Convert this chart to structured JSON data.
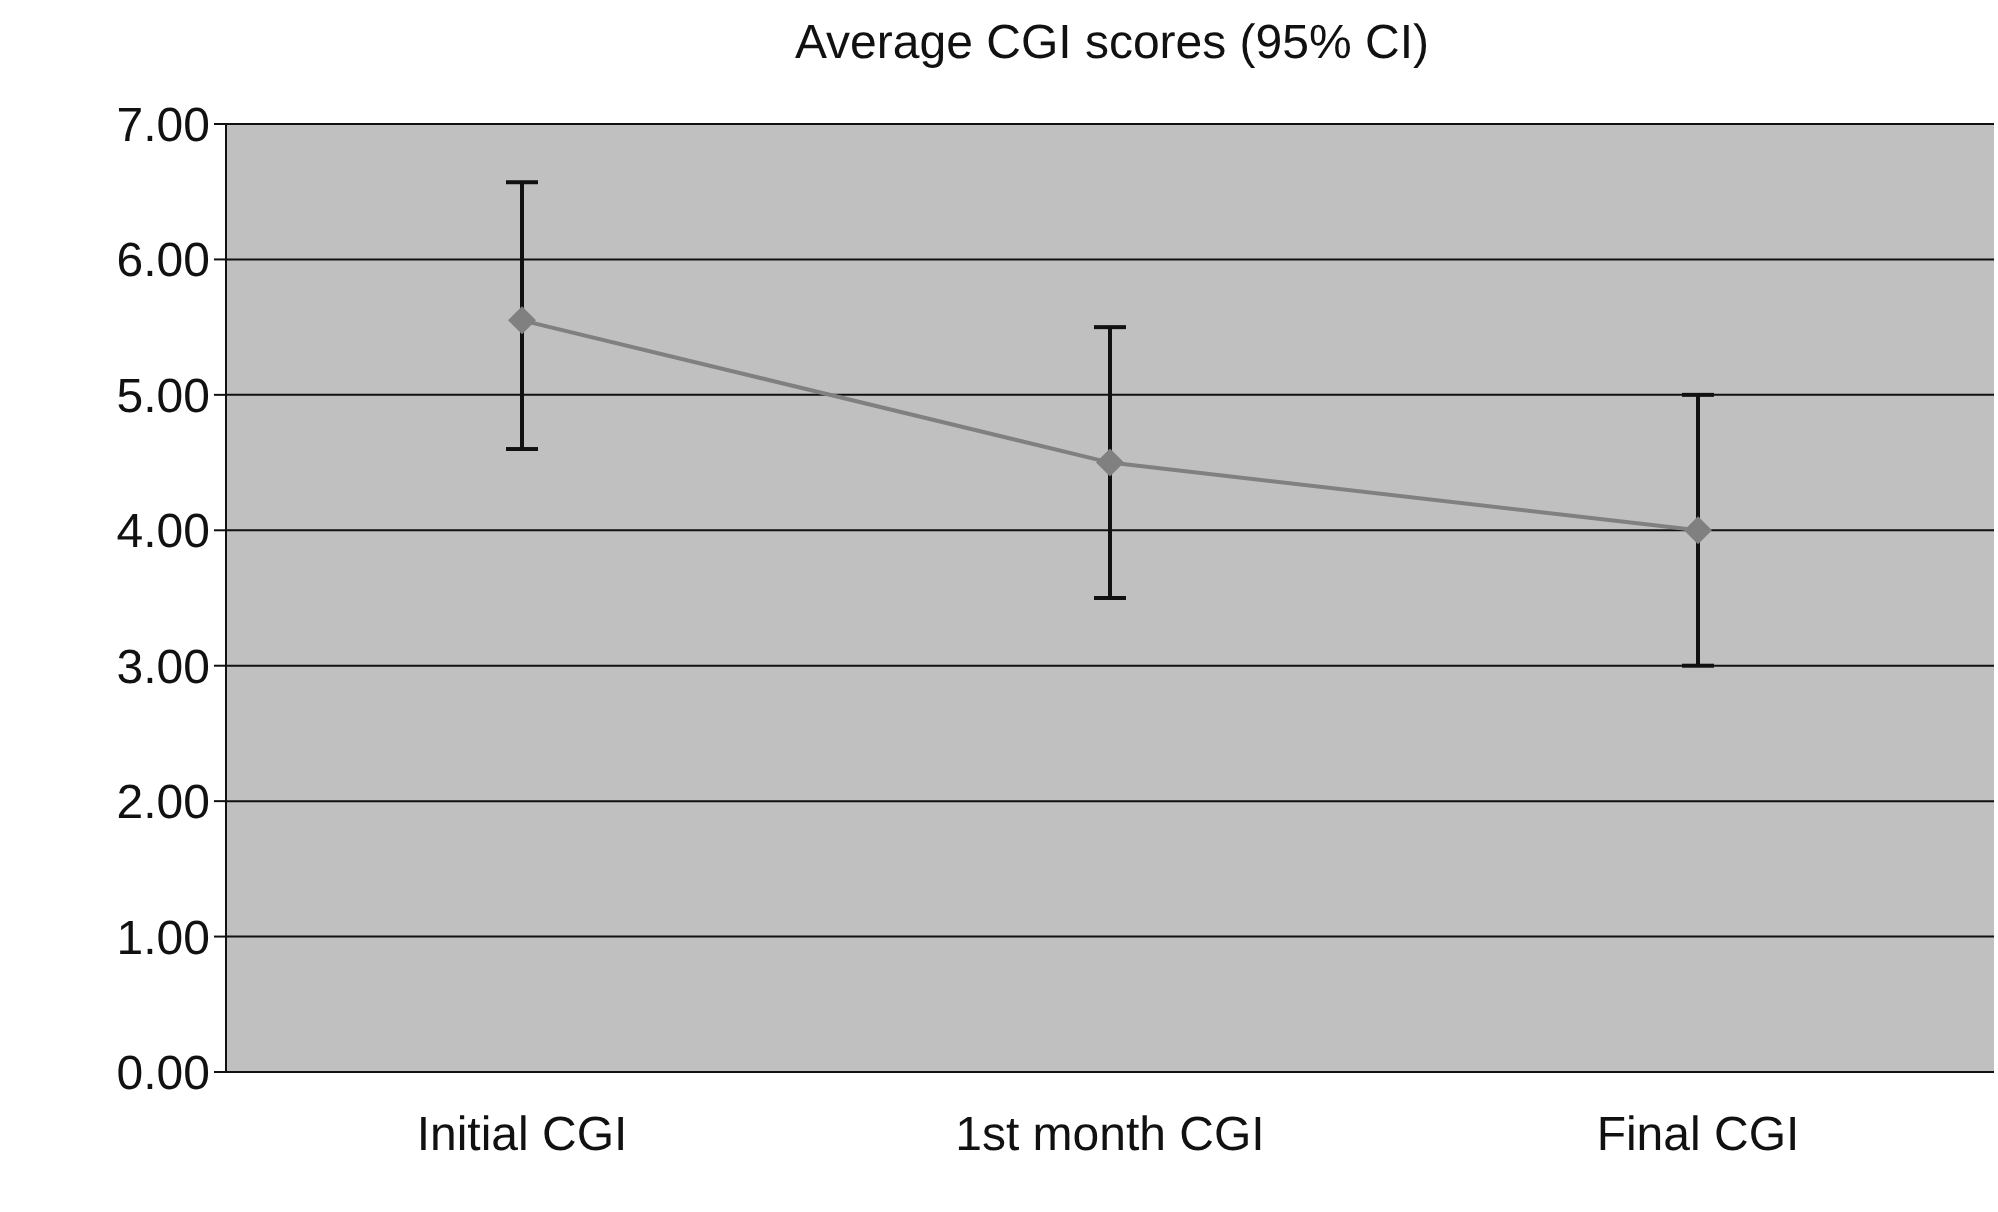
{
  "chart_data": {
    "type": "line",
    "title": "Average CGI scores (95% CI)",
    "categories": [
      "Initial CGI",
      "1st month CGI",
      "Final CGI"
    ],
    "series": [
      {
        "color": "#808080",
        "values": [
          5.55,
          4.5,
          4.0
        ],
        "errors": [
          [
            4.6,
            6.57
          ],
          [
            3.5,
            5.5
          ],
          [
            3.0,
            5.0
          ]
        ]
      }
    ],
    "ylim": [
      0,
      7
    ],
    "yticks": [
      {
        "value": 0,
        "label": "0.00"
      },
      {
        "value": 1,
        "label": "1.00"
      },
      {
        "value": 2,
        "label": "2.00"
      },
      {
        "value": 3,
        "label": "3.00"
      },
      {
        "value": 4,
        "label": "4.00"
      },
      {
        "value": 5,
        "label": "5.00"
      },
      {
        "value": 6,
        "label": "6.00"
      },
      {
        "value": 7,
        "label": "7.00"
      }
    ],
    "grid": "y",
    "legend": false,
    "marker": "diamond",
    "line_style": "solid"
  }
}
